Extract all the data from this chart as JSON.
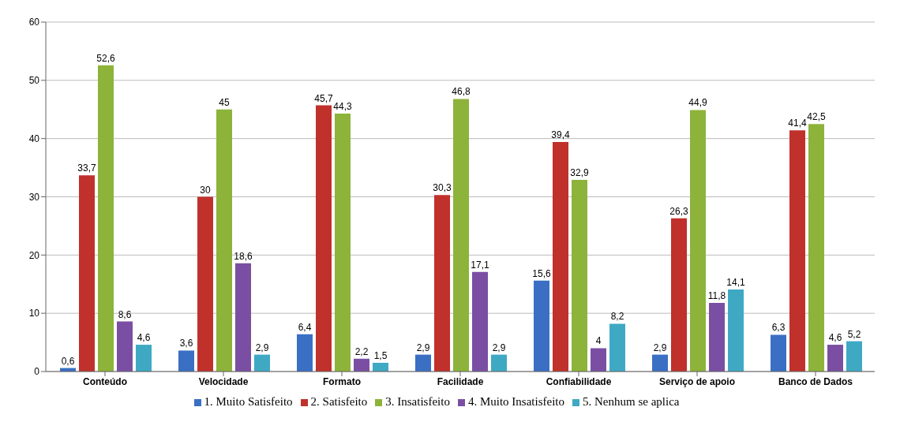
{
  "chart_data": {
    "type": "bar",
    "categories": [
      "Conteúdo",
      "Velocidade",
      "Formato",
      "Facilidade",
      "Confiabilidade",
      "Serviço de apoio",
      "Banco de Dados"
    ],
    "series": [
      {
        "name": "1. Muito Satisfeito",
        "color": "#3a6fc4",
        "values": [
          0.6,
          3.6,
          6.4,
          2.9,
          15.6,
          2.9,
          6.3
        ],
        "value_labels": [
          "0,6",
          "3,6",
          "6,4",
          "2,9",
          "15,6",
          "2,9",
          "6,3"
        ]
      },
      {
        "name": "2. Satisfeito",
        "color": "#c0312b",
        "values": [
          33.7,
          30,
          45.7,
          30.3,
          39.4,
          26.3,
          41.4
        ],
        "value_labels": [
          "33,7",
          "30",
          "45,7",
          "30,3",
          "39,4",
          "26,3",
          "41,4"
        ]
      },
      {
        "name": "3. Insatisfeito",
        "color": "#8db33a",
        "values": [
          52.6,
          45,
          44.3,
          46.8,
          32.9,
          44.9,
          42.5
        ],
        "value_labels": [
          "52,6",
          "45",
          "44,3",
          "46,8",
          "32,9",
          "44,9",
          "42,5"
        ]
      },
      {
        "name": "4. Muito Insatisfeito",
        "color": "#7a4fa3",
        "values": [
          8.6,
          18.6,
          2.2,
          17.1,
          4,
          11.8,
          4.6
        ],
        "value_labels": [
          "8,6",
          "18,6",
          "2,2",
          "17,1",
          "4",
          "11,8",
          "4,6"
        ]
      },
      {
        "name": "5. Nenhum se aplica",
        "color": "#3fa9c4",
        "values": [
          4.6,
          2.9,
          1.5,
          2.9,
          8.2,
          14.1,
          5.2
        ],
        "value_labels": [
          "4,6",
          "2,9",
          "1,5",
          "2,9",
          "8,2",
          "14,1",
          "5,2"
        ]
      }
    ],
    "ylim": [
      0,
      60
    ],
    "yticks": [
      0,
      10,
      20,
      30,
      40,
      50,
      60
    ],
    "grid": "y",
    "legend": "bottom"
  }
}
